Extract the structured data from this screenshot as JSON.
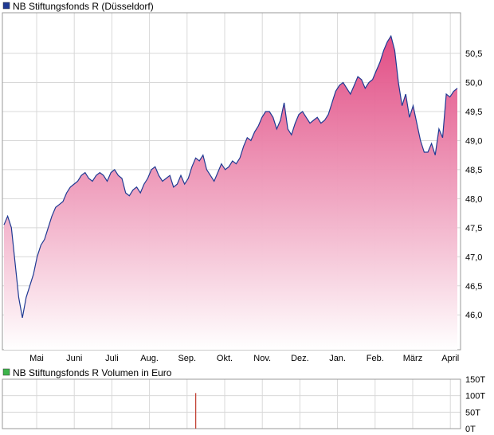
{
  "chart_data": [
    {
      "type": "area",
      "title": "NB Stiftungsfonds R (Düsseldorf)",
      "legend_color": "#1f3a93",
      "line_color": "#1f3a93",
      "fill_top_color": "#e0457f",
      "fill_bottom_color": "#ffffff",
      "grid": true,
      "x_labels": [
        "Mai",
        "Juni",
        "Juli",
        "Aug.",
        "Sep.",
        "Okt.",
        "Nov.",
        "Dez.",
        "Jan.",
        "Feb.",
        "März",
        "April"
      ],
      "y_ticks": [
        "46,0",
        "46,5",
        "47,0",
        "47,5",
        "48,0",
        "48,5",
        "49,0",
        "49,5",
        "50,0",
        "50,5"
      ],
      "ylim": [
        45.4,
        51.2
      ],
      "series": [
        {
          "values": [
            47.55,
            47.7,
            47.5,
            46.9,
            46.3,
            45.95,
            46.3,
            46.5,
            46.7,
            47.0,
            47.2,
            47.3,
            47.5,
            47.7,
            47.85,
            47.9,
            47.95,
            48.1,
            48.2,
            48.25,
            48.3,
            48.4,
            48.45,
            48.35,
            48.3,
            48.4,
            48.45,
            48.4,
            48.3,
            48.45,
            48.5,
            48.4,
            48.35,
            48.1,
            48.05,
            48.15,
            48.2,
            48.1,
            48.25,
            48.35,
            48.5,
            48.55,
            48.4,
            48.3,
            48.35,
            48.4,
            48.2,
            48.25,
            48.4,
            48.25,
            48.35,
            48.55,
            48.7,
            48.65,
            48.75,
            48.5,
            48.4,
            48.3,
            48.45,
            48.6,
            48.5,
            48.55,
            48.65,
            48.6,
            48.7,
            48.9,
            49.05,
            49.0,
            49.15,
            49.25,
            49.4,
            49.5,
            49.5,
            49.4,
            49.2,
            49.35,
            49.65,
            49.2,
            49.1,
            49.3,
            49.45,
            49.5,
            49.4,
            49.3,
            49.35,
            49.4,
            49.3,
            49.35,
            49.45,
            49.65,
            49.85,
            49.95,
            50.0,
            49.9,
            49.8,
            49.95,
            50.1,
            50.05,
            49.9,
            50.0,
            50.05,
            50.2,
            50.35,
            50.55,
            50.7,
            50.8,
            50.55,
            50.0,
            49.6,
            49.8,
            49.4,
            49.6,
            49.3,
            49.0,
            48.8,
            48.8,
            48.95,
            48.75,
            49.2,
            49.05,
            49.8,
            49.75,
            49.85,
            49.9
          ]
        }
      ]
    },
    {
      "type": "bar",
      "title": "NB Stiftungsfonds R Volumen in Euro",
      "legend_color": "#3cb44b",
      "bar_color": "#c0392b",
      "y_ticks": [
        "0T",
        "50T",
        "100T",
        "150T"
      ],
      "ylim": [
        0,
        150
      ],
      "values": [
        {
          "index": 52,
          "value": 108
        }
      ]
    }
  ]
}
